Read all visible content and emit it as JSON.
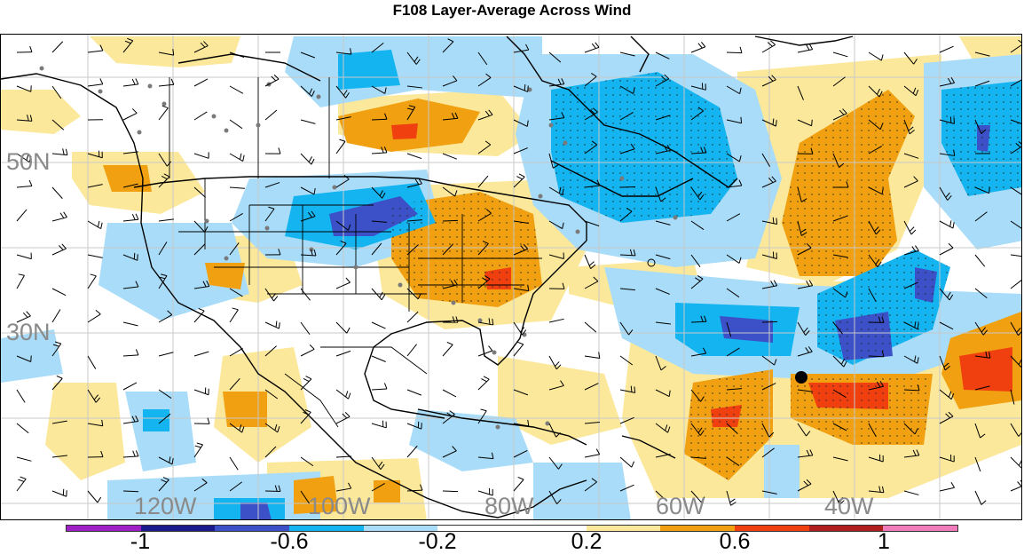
{
  "title": "F108 Layer-Average Across Wind",
  "map": {
    "lat_labels": [
      "50N",
      "30N"
    ],
    "lon_labels": [
      "120W",
      "100W",
      "80W",
      "60W",
      "40W"
    ]
  },
  "colorbar": {
    "colors": [
      "#a020c8",
      "#1a1a8c",
      "#3c50c8",
      "#14b4f0",
      "#a8dcf8",
      "#ffffff",
      "#ffffff",
      "#fce89a",
      "#f0a010",
      "#f04010",
      "#b01e1e",
      "#f07cbc"
    ],
    "tick_labels": [
      "-1",
      "-0.6",
      "-0.2",
      "0.2",
      "0.6",
      "1"
    ],
    "tick_values": [
      -1,
      -0.6,
      -0.2,
      0.2,
      0.6,
      1
    ]
  },
  "colors": {
    "light_yellow": "#fce89a",
    "orange": "#f0a010",
    "red_orange": "#f04010",
    "light_blue": "#a8dcf8",
    "blue": "#14b4f0",
    "dark_blue": "#3c50c8",
    "coast": "#000000",
    "station_dots": "#7a7a7a"
  }
}
